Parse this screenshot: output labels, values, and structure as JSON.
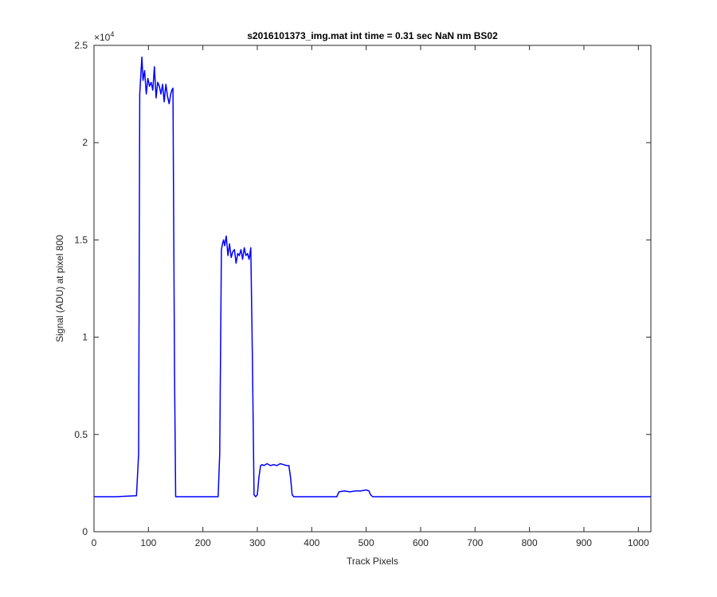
{
  "chart_data": {
    "type": "line",
    "title": "s2016101373_img.mat int time = 0.31 sec  NaN nm BS02",
    "xlabel": "Track Pixels",
    "ylabel": "Signal (ADU) at pixel 800",
    "xlim": [
      0,
      1023
    ],
    "ylim": [
      0,
      25000
    ],
    "x_ticks": [
      0,
      100,
      200,
      300,
      400,
      500,
      600,
      700,
      800,
      900,
      1000
    ],
    "x_tick_labels": [
      "0",
      "100",
      "200",
      "300",
      "400",
      "500",
      "600",
      "700",
      "800",
      "900",
      "1000"
    ],
    "y_ticks": [
      0,
      5000,
      10000,
      15000,
      20000,
      25000
    ],
    "y_tick_labels": [
      "0",
      "0.5",
      "1",
      "1.5",
      "2",
      "2.5"
    ],
    "y_exponent_label": "×10",
    "y_exponent_power": "4",
    "grid": false,
    "line_color": "#0000ff",
    "series": [
      {
        "x": [
          0,
          40,
          78,
          82,
          84,
          86,
          88,
          90,
          93,
          96,
          99,
          102,
          105,
          108,
          111,
          114,
          117,
          120,
          123,
          126,
          129,
          132,
          135,
          138,
          141,
          143,
          145,
          148,
          150,
          200,
          228,
          231,
          234,
          236,
          238,
          240,
          243,
          246,
          249,
          252,
          255,
          258,
          261,
          264,
          267,
          270,
          273,
          276,
          279,
          282,
          285,
          288,
          291,
          294,
          297,
          300,
          303,
          306,
          309,
          312,
          318,
          324,
          330,
          336,
          342,
          348,
          354,
          358,
          361,
          364,
          367,
          400,
          440,
          446,
          450,
          460,
          470,
          480,
          490,
          500,
          505,
          508,
          512,
          560,
          620,
          700,
          800,
          900,
          1023
        ],
        "y": [
          1800,
          1800,
          1850,
          4000,
          22500,
          23500,
          24400,
          23200,
          23700,
          22500,
          23300,
          22900,
          23100,
          22700,
          23900,
          22300,
          23100,
          22900,
          22500,
          23000,
          22100,
          23000,
          22400,
          22000,
          22500,
          22700,
          22800,
          8000,
          1800,
          1800,
          1800,
          4000,
          14500,
          14800,
          15000,
          14700,
          15200,
          14200,
          14800,
          14100,
          14400,
          14500,
          13800,
          14300,
          14200,
          14500,
          14000,
          14600,
          14200,
          14300,
          14000,
          14600,
          9000,
          1900,
          1800,
          1900,
          2800,
          3400,
          3450,
          3400,
          3500,
          3400,
          3450,
          3400,
          3500,
          3450,
          3400,
          3400,
          2800,
          1900,
          1800,
          1800,
          1800,
          1800,
          2050,
          2100,
          2050,
          2100,
          2100,
          2150,
          2100,
          1900,
          1800,
          1800,
          1800,
          1800,
          1800,
          1800,
          1800
        ]
      }
    ]
  }
}
